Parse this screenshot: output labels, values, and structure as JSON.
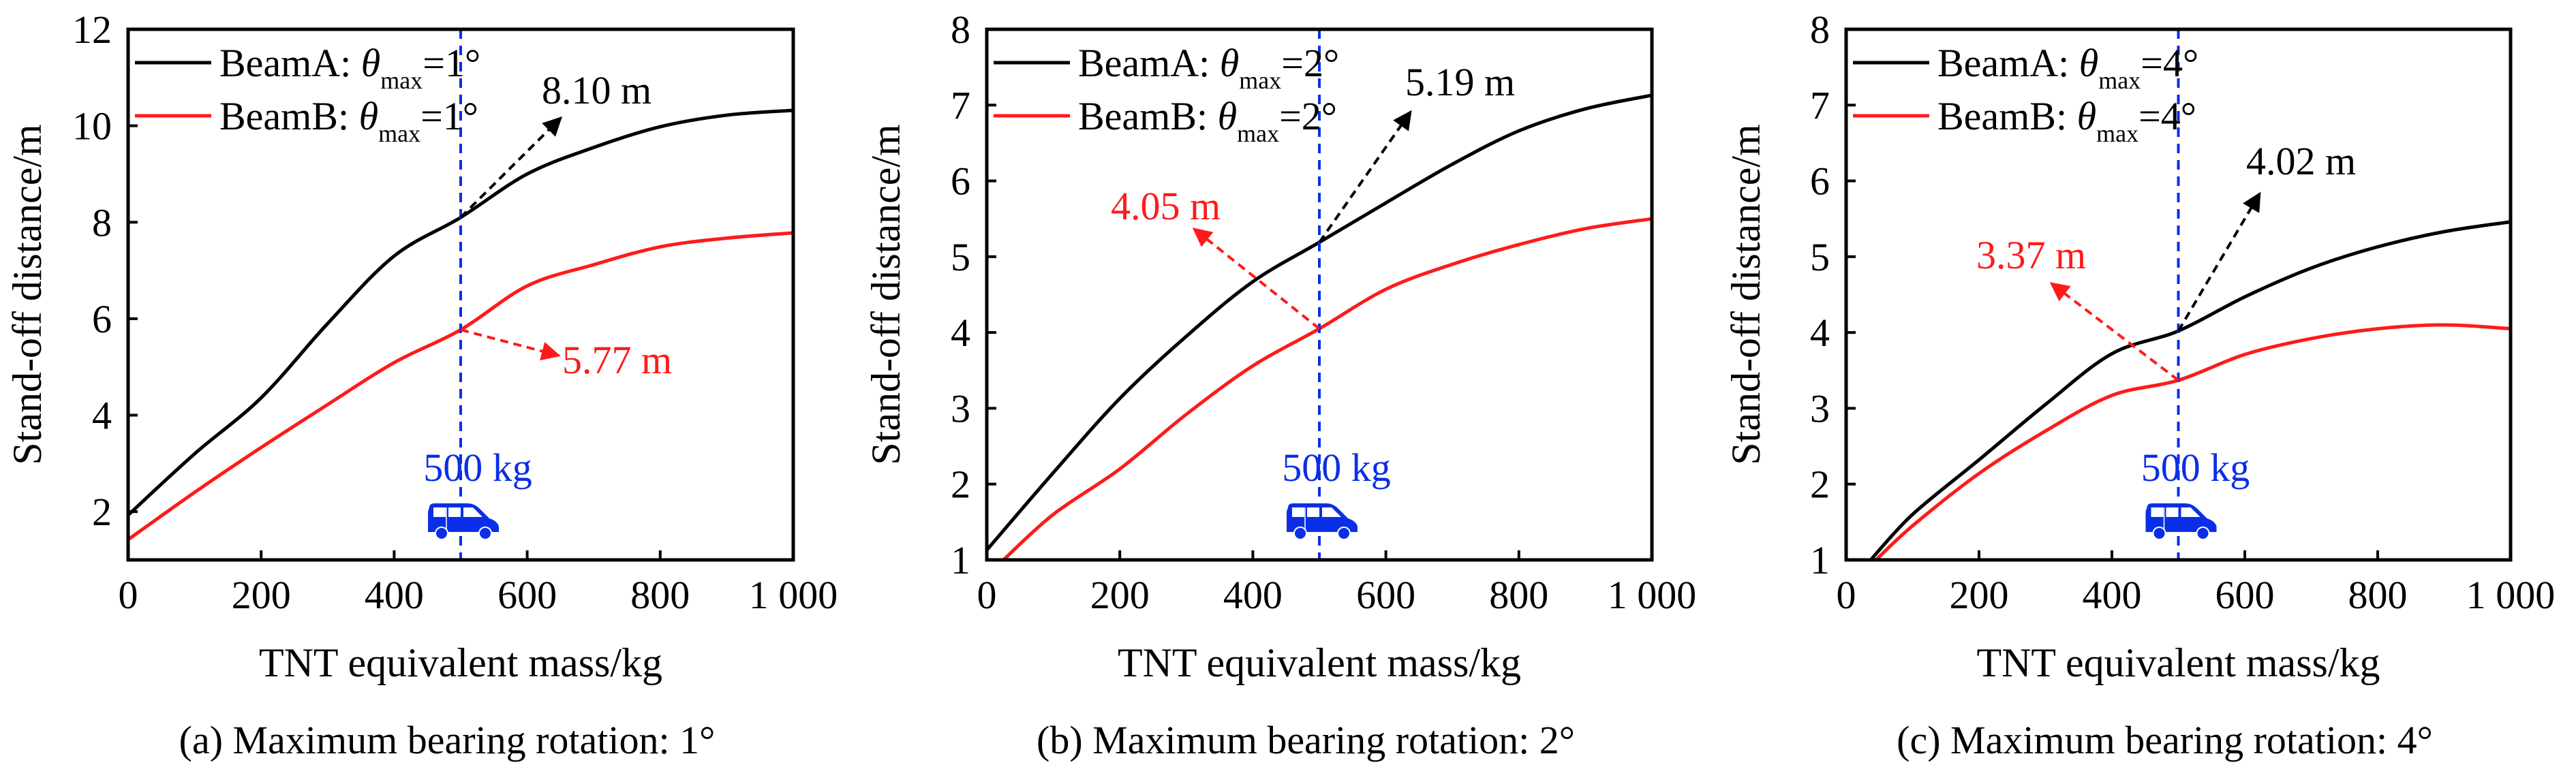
{
  "chart_data": [
    {
      "id": "a",
      "type": "line",
      "caption": "(a) Maximum bearing rotation: 1°",
      "xlabel": "TNT equivalent mass/kg",
      "ylabel": "Stand-off distance/m",
      "xlim": [
        0,
        1000
      ],
      "ylim": [
        1,
        12
      ],
      "xticks": [
        0,
        200,
        400,
        600,
        800,
        1000
      ],
      "xtick_labels": [
        "0",
        "200",
        "400",
        "600",
        "800",
        "1 000"
      ],
      "yticks": [
        2,
        4,
        6,
        8,
        10,
        12
      ],
      "ytick_labels": [
        "2",
        "4",
        "6",
        "8",
        "10",
        "12"
      ],
      "legend_position": "top-left",
      "series": [
        {
          "name": "BeamA",
          "legend_prefix": "BeamA: ",
          "theta_sub": "max",
          "legend_suffix": "=1°",
          "color": "#000000",
          "x": [
            0,
            100,
            200,
            300,
            400,
            500,
            600,
            700,
            800,
            900,
            1000
          ],
          "y": [
            1.93,
            3.2,
            4.36,
            5.9,
            7.3,
            8.1,
            9.0,
            9.55,
            9.98,
            10.22,
            10.32
          ]
        },
        {
          "name": "BeamB",
          "legend_prefix": "BeamB: ",
          "theta_sub": "max",
          "legend_suffix": "=1°",
          "color": "#ff1a1a",
          "x": [
            0,
            100,
            200,
            300,
            400,
            500,
            600,
            700,
            800,
            900,
            1000
          ],
          "y": [
            1.42,
            2.4,
            3.33,
            4.22,
            5.09,
            5.77,
            6.68,
            7.12,
            7.49,
            7.67,
            7.78
          ]
        }
      ],
      "reference": {
        "x": 500,
        "label": "500 kg",
        "color": "#0a2fe6",
        "icon": "van-icon"
      },
      "annotations": [
        {
          "text": "8.10 m",
          "value": 8.1,
          "series": "BeamA",
          "color": "#000000",
          "direction": "up-right"
        },
        {
          "text": "5.77 m",
          "value": 5.77,
          "series": "BeamB",
          "color": "#ff1a1a",
          "direction": "down-right"
        }
      ]
    },
    {
      "id": "b",
      "type": "line",
      "caption": "(b) Maximum bearing rotation: 2°",
      "xlabel": "TNT equivalent mass/kg",
      "ylabel": "Stand-off distance/m",
      "xlim": [
        0,
        1000
      ],
      "ylim": [
        1,
        8
      ],
      "xticks": [
        0,
        200,
        400,
        600,
        800,
        1000
      ],
      "xtick_labels": [
        "0",
        "200",
        "400",
        "600",
        "800",
        "1 000"
      ],
      "yticks": [
        1,
        2,
        3,
        4,
        5,
        6,
        7,
        8
      ],
      "ytick_labels": [
        "1",
        "2",
        "3",
        "4",
        "5",
        "6",
        "7",
        "8"
      ],
      "legend_position": "top-left",
      "series": [
        {
          "name": "BeamA",
          "legend_prefix": "BeamA: ",
          "theta_sub": "max",
          "legend_suffix": "=2°",
          "color": "#000000",
          "x": [
            0,
            100,
            200,
            300,
            400,
            500,
            600,
            700,
            800,
            900,
            1000
          ],
          "y": [
            1.13,
            2.15,
            3.13,
            3.95,
            4.67,
            5.19,
            5.71,
            6.22,
            6.66,
            6.95,
            7.13
          ]
        },
        {
          "name": "BeamB",
          "legend_prefix": "BeamB: ",
          "theta_sub": "max",
          "legend_suffix": "=2°",
          "color": "#ff1a1a",
          "x": [
            25,
            100,
            200,
            300,
            400,
            500,
            600,
            700,
            800,
            900,
            1000
          ],
          "y": [
            1.0,
            1.6,
            2.2,
            2.92,
            3.56,
            4.05,
            4.57,
            4.9,
            5.16,
            5.37,
            5.5
          ]
        }
      ],
      "reference": {
        "x": 500,
        "label": "500 kg",
        "color": "#0a2fe6",
        "icon": "van-icon"
      },
      "annotations": [
        {
          "text": "5.19 m",
          "value": 5.19,
          "series": "BeamA",
          "color": "#000000",
          "direction": "up-right"
        },
        {
          "text": "4.05 m",
          "value": 4.05,
          "series": "BeamB",
          "color": "#ff1a1a",
          "direction": "up-left"
        }
      ]
    },
    {
      "id": "c",
      "type": "line",
      "caption": "(c) Maximum bearing rotation: 4°",
      "xlabel": "TNT equivalent mass/kg",
      "ylabel": "Stand-off distance/m",
      "xlim": [
        0,
        1000
      ],
      "ylim": [
        1,
        8
      ],
      "xticks": [
        0,
        200,
        400,
        600,
        800,
        1000
      ],
      "xtick_labels": [
        "0",
        "200",
        "400",
        "600",
        "800",
        "1 000"
      ],
      "yticks": [
        1,
        2,
        3,
        4,
        5,
        6,
        7,
        8
      ],
      "ytick_labels": [
        "1",
        "2",
        "3",
        "4",
        "5",
        "6",
        "7",
        "8"
      ],
      "legend_position": "top-left",
      "series": [
        {
          "name": "BeamA",
          "legend_prefix": "BeamA: ",
          "theta_sub": "max",
          "legend_suffix": "=4°",
          "color": "#000000",
          "x": [
            37,
            100,
            200,
            300,
            400,
            500,
            600,
            700,
            800,
            900,
            1000
          ],
          "y": [
            1.0,
            1.6,
            2.32,
            3.05,
            3.72,
            4.02,
            4.47,
            4.85,
            5.13,
            5.33,
            5.46
          ]
        },
        {
          "name": "BeamB",
          "legend_prefix": "BeamB: ",
          "theta_sub": "max",
          "legend_suffix": "=4°",
          "color": "#ff1a1a",
          "x": [
            45,
            100,
            200,
            300,
            400,
            500,
            600,
            700,
            800,
            900,
            1000
          ],
          "y": [
            1.0,
            1.45,
            2.14,
            2.7,
            3.17,
            3.37,
            3.71,
            3.92,
            4.05,
            4.1,
            4.05
          ]
        }
      ],
      "reference": {
        "x": 500,
        "label": "500 kg",
        "color": "#0a2fe6",
        "icon": "van-icon"
      },
      "annotations": [
        {
          "text": "4.02 m",
          "value": 4.02,
          "series": "BeamA",
          "color": "#000000",
          "direction": "up-right"
        },
        {
          "text": "3.37 m",
          "value": 3.37,
          "series": "BeamB",
          "color": "#ff1a1a",
          "direction": "up-left"
        }
      ]
    }
  ]
}
